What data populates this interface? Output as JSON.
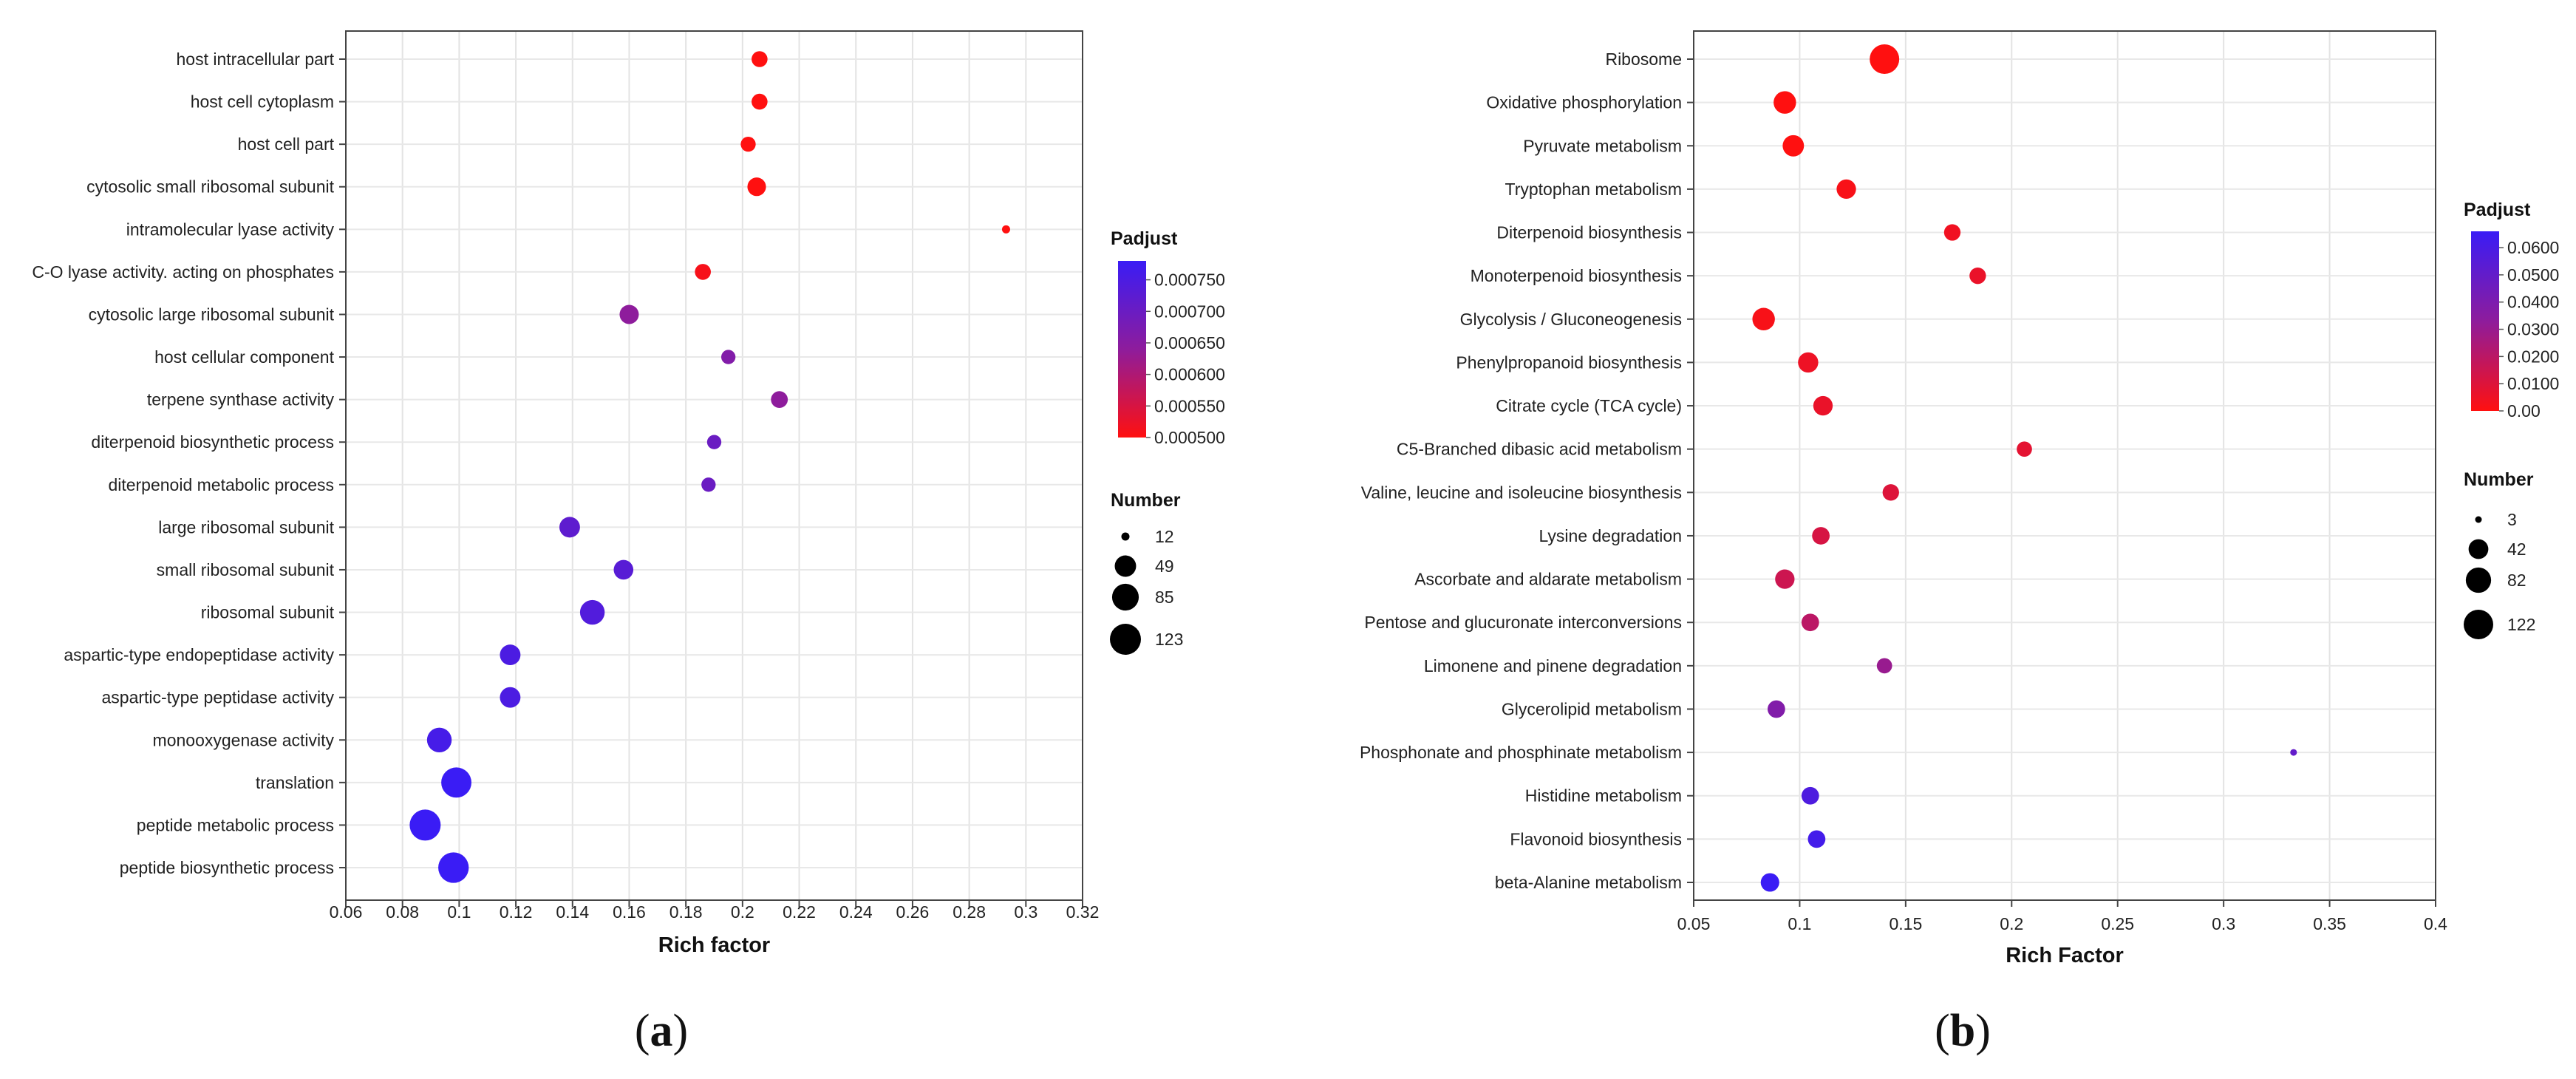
{
  "chart_data": [
    {
      "type": "scatter",
      "panel_label_pre": "(",
      "panel_label": "a",
      "panel_label_post": ")",
      "xlabel": "Rich factor",
      "xlim": [
        0.06,
        0.32
      ],
      "xticks": [
        "0.06",
        "0.08",
        "0.1",
        "0.12",
        "0.14",
        "0.16",
        "0.18",
        "0.2",
        "0.22",
        "0.24",
        "0.26",
        "0.28",
        "0.3",
        "0.32"
      ],
      "grid": true,
      "categories": [
        "host intracellular part",
        "host cell cytoplasm",
        "host cell part",
        "cytosolic small ribosomal subunit",
        "intramolecular lyase activity",
        "C-O lyase activity. acting on phosphates",
        "cytosolic large ribosomal subunit",
        "host cellular component",
        "terpene synthase activity",
        "diterpenoid biosynthetic process",
        "diterpenoid metabolic process",
        "large ribosomal subunit",
        "small ribosomal subunit",
        "ribosomal subunit",
        "aspartic-type endopeptidase activity",
        "aspartic-type peptidase activity",
        "monooxygenase activity",
        "translation",
        "peptide metabolic process",
        "peptide biosynthetic process"
      ],
      "rich_factor": [
        0.206,
        0.206,
        0.202,
        0.205,
        0.293,
        0.186,
        0.16,
        0.195,
        0.213,
        0.19,
        0.188,
        0.139,
        0.158,
        0.147,
        0.118,
        0.118,
        0.093,
        0.099,
        0.088,
        0.098
      ],
      "number": [
        25,
        25,
        22,
        35,
        12,
        25,
        38,
        20,
        28,
        20,
        20,
        45,
        40,
        70,
        45,
        45,
        70,
        115,
        123,
        118
      ],
      "padjust": [
        0.0005,
        0.0005,
        0.0005,
        0.0005,
        0.0005,
        0.00051,
        0.00064,
        0.00066,
        0.00064,
        0.0007,
        0.0007,
        0.00072,
        0.00073,
        0.00074,
        0.00075,
        0.00075,
        0.00076,
        0.00078,
        0.00078,
        0.00078
      ],
      "legend_color": {
        "title": "Padjust",
        "range": [
          0.0005,
          0.00078
        ],
        "tick_values": [
          0.00075,
          0.0007,
          0.00065,
          0.0006,
          0.00055,
          0.0005
        ],
        "tick_labels": [
          "0.000750",
          "0.000700",
          "0.000650",
          "0.000600",
          "0.000550",
          "0.000500"
        ],
        "low_color": "#ff1010",
        "mid_color": "#8e1c9c",
        "high_color": "#3a1cf5"
      },
      "legend_size": {
        "title": "Number",
        "values": [
          12,
          49,
          85,
          123
        ],
        "labels": [
          "12",
          "49",
          "85",
          "123"
        ]
      }
    },
    {
      "type": "scatter",
      "panel_label_pre": "(",
      "panel_label": "b",
      "panel_label_post": ")",
      "xlabel": "Rich Factor",
      "xlim": [
        0.05,
        0.4
      ],
      "xticks": [
        "0.05",
        "0.1",
        "0.15",
        "0.2",
        "0.25",
        "0.3",
        "0.35",
        "0.4"
      ],
      "grid": true,
      "categories": [
        "Ribosome",
        "Oxidative phosphorylation",
        "Pyruvate metabolism",
        "Tryptophan metabolism",
        "Diterpenoid biosynthesis",
        "Monoterpenoid biosynthesis",
        "Glycolysis / Gluconeogenesis",
        "Phenylpropanoid biosynthesis",
        "Citrate cycle (TCA cycle)",
        "C5-Branched dibasic acid metabolism",
        "Valine, leucine and isoleucine biosynthesis",
        "Lysine degradation",
        "Ascorbate and aldarate metabolism",
        "Pentose and glucuronate interconversions",
        "Limonene and pinene degradation",
        "Glycerolipid metabolism",
        "Phosphonate and phosphinate metabolism",
        "Histidine metabolism",
        "Flavonoid biosynthesis",
        "beta-Alanine metabolism"
      ],
      "rich_factor": [
        0.14,
        0.093,
        0.097,
        0.122,
        0.172,
        0.184,
        0.083,
        0.104,
        0.111,
        0.206,
        0.143,
        0.11,
        0.093,
        0.105,
        0.14,
        0.089,
        0.333,
        0.105,
        0.108,
        0.086
      ],
      "number": [
        122,
        60,
        52,
        40,
        25,
        25,
        60,
        45,
        40,
        20,
        25,
        30,
        40,
        30,
        20,
        30,
        3,
        30,
        30,
        35
      ],
      "padjust": [
        0.0,
        0.0,
        0.0,
        0.002,
        0.004,
        0.006,
        0.002,
        0.005,
        0.006,
        0.008,
        0.01,
        0.012,
        0.015,
        0.02,
        0.03,
        0.038,
        0.05,
        0.058,
        0.062,
        0.066
      ],
      "legend_color": {
        "title": "Padjust",
        "range": [
          0.0,
          0.066
        ],
        "tick_values": [
          0.06,
          0.05,
          0.04,
          0.03,
          0.02,
          0.01,
          0.0
        ],
        "tick_labels": [
          "0.0600",
          "0.0500",
          "0.0400",
          "0.0300",
          "0.0200",
          "0.0100",
          "0.00"
        ],
        "low_color": "#ff1010",
        "mid_color": "#8e1c9c",
        "high_color": "#3a1cf5"
      },
      "legend_size": {
        "title": "Number",
        "values": [
          3,
          42,
          82,
          122
        ],
        "labels": [
          "3",
          "42",
          "82",
          "122"
        ]
      }
    }
  ]
}
